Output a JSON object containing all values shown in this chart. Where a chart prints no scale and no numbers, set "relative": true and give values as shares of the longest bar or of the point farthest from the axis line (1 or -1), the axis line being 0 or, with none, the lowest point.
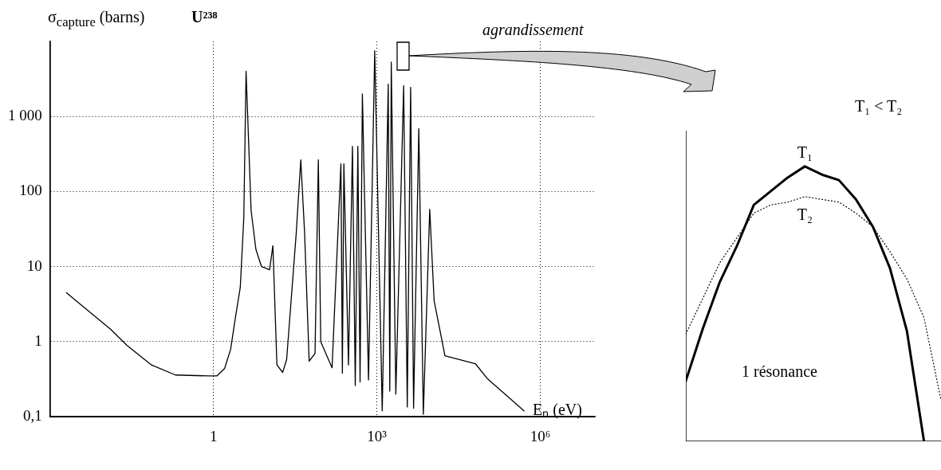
{
  "chart_data": [
    {
      "type": "line",
      "title": "U²³⁸",
      "xlabel": "Eₙ (eV)",
      "ylabel": "σ$_{capture}$ (barns)",
      "log": "xy",
      "grid": true,
      "marker": "none",
      "line_style": "solid",
      "xlim": [
        0.001,
        10000000
      ],
      "xticks": [
        1,
        {
          "value": 1000,
          "label": "10³"
        },
        {
          "value": 1000000,
          "label": "10⁶"
        }
      ],
      "ylim": [
        0.1,
        10000
      ],
      "yticks": [
        {
          "value": 0.1,
          "label": "0,1"
        },
        1,
        10,
        100,
        {
          "value": 1000,
          "label": "1 000"
        }
      ],
      "annotations": [
        "agrandissement"
      ],
      "series": [
        {
          "color": "#000000",
          "x": [
            0.002,
            0.013,
            0.026,
            0.073,
            0.2,
            0.81,
            1.15,
            1.6,
            2.06,
            2.5,
            3.1,
            3.6,
            3.96,
            4.2,
            4.9,
            6,
            7.6,
            10.7,
            12.3,
            14.6,
            18.6,
            22,
            33,
            40,
            47,
            57,
            73,
            84,
            93,
            150,
            218,
            232,
            247,
            300,
            355,
            400,
            446,
            490,
            540,
            700,
            910,
            1250,
            1610,
            1720,
            1830,
            2220,
            3090,
            3600,
            4150,
            4700,
            5860,
            7100,
            9300,
            11200,
            17700,
            64000,
            107000,
            500000
          ],
          "values": [
            4.5,
            1.46,
            0.89,
            0.49,
            0.36,
            0.35,
            0.35,
            0.44,
            0.79,
            2,
            5.3,
            45,
            4000,
            1240,
            56,
            17,
            10,
            9.1,
            19,
            0.49,
            0.39,
            0.58,
            28,
            265,
            28,
            0.55,
            0.7,
            265,
            1,
            0.45,
            234,
            0.38,
            234,
            0.49,
            400,
            0.26,
            400,
            0.29,
            2000,
            0.31,
            7500,
            0.12,
            2700,
            0.22,
            5300,
            0.2,
            2570,
            0.135,
            2450,
            0.13,
            690,
            0.108,
            58,
            3.5,
            0.65,
            0.51,
            0.32,
            0.12
          ]
        }
      ]
    },
    {
      "type": "line",
      "relative": true,
      "marker": "none",
      "annotations": [
        "T₁ < T₂",
        "1 résonance"
      ],
      "categories": [
        null,
        null,
        null,
        null,
        null,
        null,
        null,
        null,
        null,
        null,
        null,
        null,
        null,
        null,
        null,
        null
      ],
      "series": [
        {
          "name": "T₁",
          "color": "#000000",
          "line_style": "solid",
          "values": [
            0.22,
            0.41,
            0.58,
            0.71,
            0.86,
            0.91,
            0.96,
            1,
            0.97,
            0.95,
            0.88,
            0.78,
            0.63,
            0.4,
            0,
            null
          ]
        },
        {
          "name": "T₂",
          "color": "#000000",
          "line_style": "dotted",
          "values": [
            0.39,
            0.52,
            0.65,
            0.74,
            0.83,
            0.86,
            0.87,
            0.89,
            0.88,
            0.87,
            0.83,
            0.78,
            0.69,
            0.59,
            0.45,
            0.15
          ]
        }
      ]
    }
  ]
}
